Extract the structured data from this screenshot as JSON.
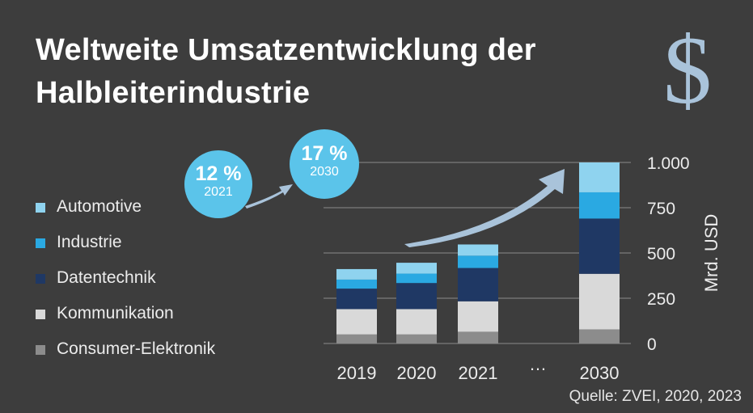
{
  "title_line1": "Weltweite Umsatzentwicklung der",
  "title_line2": "Halbleiterindustrie",
  "icon": {
    "name": "dollar-sign",
    "glyph": "$"
  },
  "growth": [
    {
      "percent": "12 %",
      "year": "2021"
    },
    {
      "percent": "17 %",
      "year": "2030"
    }
  ],
  "source": "Quelle: ZVEI, 2020, 2023",
  "colors": {
    "Automotive": "#8fd3ef",
    "Industrie": "#2aa9e2",
    "Datentechnik": "#1f3864",
    "Kommunikation": "#d9d9d9",
    "Consumer-Elektronik": "#8c8c8c",
    "bubble": "#5bc4ea",
    "arrow": "#a9c3da"
  },
  "chart_data": {
    "type": "bar",
    "stacked": true,
    "categories": [
      "2019",
      "2020",
      "2021",
      "…",
      "2030"
    ],
    "gap_label": "…",
    "ylabel": "Mrd. USD",
    "ylim": [
      0,
      1000
    ],
    "yticks": [
      0,
      250,
      500,
      750,
      1000
    ],
    "ytick_labels": [
      "0",
      "250",
      "500",
      "750",
      "1.000"
    ],
    "legend_position": "left",
    "grid": true,
    "series": [
      {
        "name": "Consumer-Elektronik",
        "values": [
          50,
          50,
          65,
          null,
          78
        ]
      },
      {
        "name": "Kommunikation",
        "values": [
          140,
          140,
          168,
          null,
          307
        ]
      },
      {
        "name": "Datentechnik",
        "values": [
          113,
          144,
          184,
          null,
          305
        ]
      },
      {
        "name": "Industrie",
        "values": [
          50,
          52,
          68,
          null,
          145
        ]
      },
      {
        "name": "Automotive",
        "values": [
          58,
          60,
          62,
          null,
          165
        ]
      }
    ]
  }
}
